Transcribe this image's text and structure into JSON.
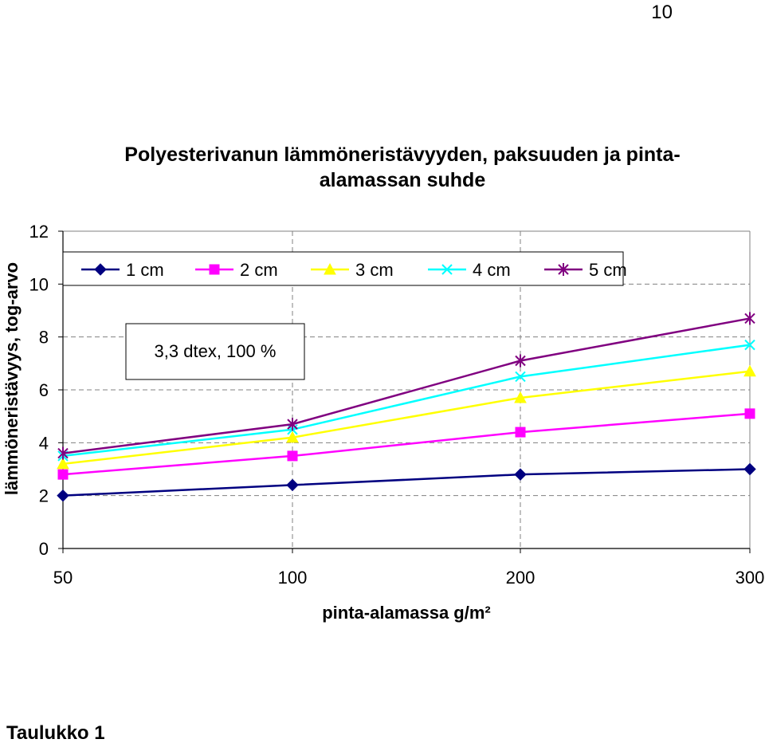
{
  "page_number": "10",
  "caption": "Taulukko 1",
  "chart_data": {
    "type": "line",
    "title": "Polyesterivanun lämmöneristävyyden, paksuuden ja pinta-alamassan suhde",
    "title_lines": [
      "Polyesterivanun lämmöneristävyyden, paksuuden ja pinta-",
      "alamassan suhde"
    ],
    "xlabel": "pinta-alamassa g/m²",
    "ylabel": "lämmöneristävyys, tog-arvo",
    "categories": [
      "50",
      "100",
      "200",
      "300"
    ],
    "yticks": [
      "0",
      "2",
      "4",
      "6",
      "8",
      "10",
      "12"
    ],
    "ylim": [
      0,
      12
    ],
    "grid": true,
    "legend_position": "top",
    "annotation": "3,3 dtex, 100 %",
    "series": [
      {
        "name": "1 cm",
        "values": [
          2.0,
          2.4,
          2.8,
          3.0
        ],
        "color": "#000080",
        "marker": "diamond"
      },
      {
        "name": "2 cm",
        "values": [
          2.8,
          3.5,
          4.4,
          5.1
        ],
        "color": "#ff00ff",
        "marker": "square"
      },
      {
        "name": "3 cm",
        "values": [
          3.2,
          4.2,
          5.7,
          6.7
        ],
        "color": "#ffff00",
        "marker": "triangle"
      },
      {
        "name": "4 cm",
        "values": [
          3.5,
          4.5,
          6.5,
          7.7
        ],
        "color": "#00ffff",
        "marker": "x"
      },
      {
        "name": "5 cm",
        "values": [
          3.6,
          4.7,
          7.1,
          8.7
        ],
        "color": "#800080",
        "marker": "star"
      }
    ]
  }
}
